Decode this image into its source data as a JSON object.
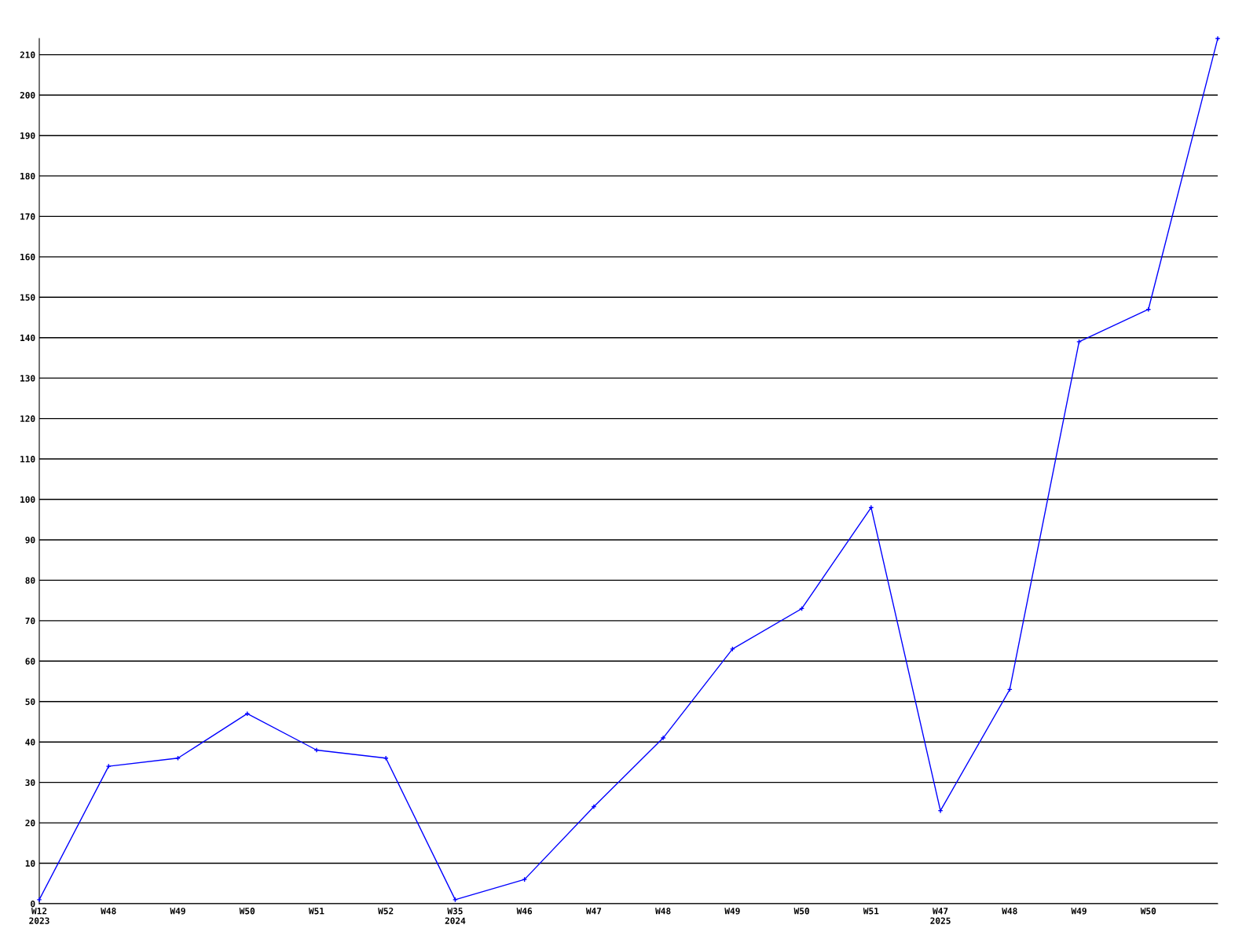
{
  "chart_data": {
    "type": "line",
    "categories": [
      "W12\n2023",
      "W48",
      "W49",
      "W50",
      "W51",
      "W52",
      "W35\n2024",
      "W46",
      "W47",
      "W48",
      "W49",
      "W50",
      "W51",
      "W47\n2025",
      "W48",
      "W49",
      "W50",
      null
    ],
    "series": [
      {
        "color": "#0000ff",
        "values": [
          1,
          34,
          36,
          47,
          38,
          36,
          1,
          6,
          24,
          41,
          63,
          73,
          98,
          23,
          53,
          139,
          147,
          214
        ]
      }
    ],
    "ylim": [
      0,
      214
    ],
    "yticks": [
      0,
      10,
      20,
      30,
      40,
      50,
      60,
      70,
      80,
      90,
      100,
      110,
      120,
      130,
      140,
      150,
      160,
      170,
      180,
      190,
      200,
      210
    ],
    "grid": "y",
    "marker": "cross",
    "line_style": "solid",
    "legend": false
  }
}
